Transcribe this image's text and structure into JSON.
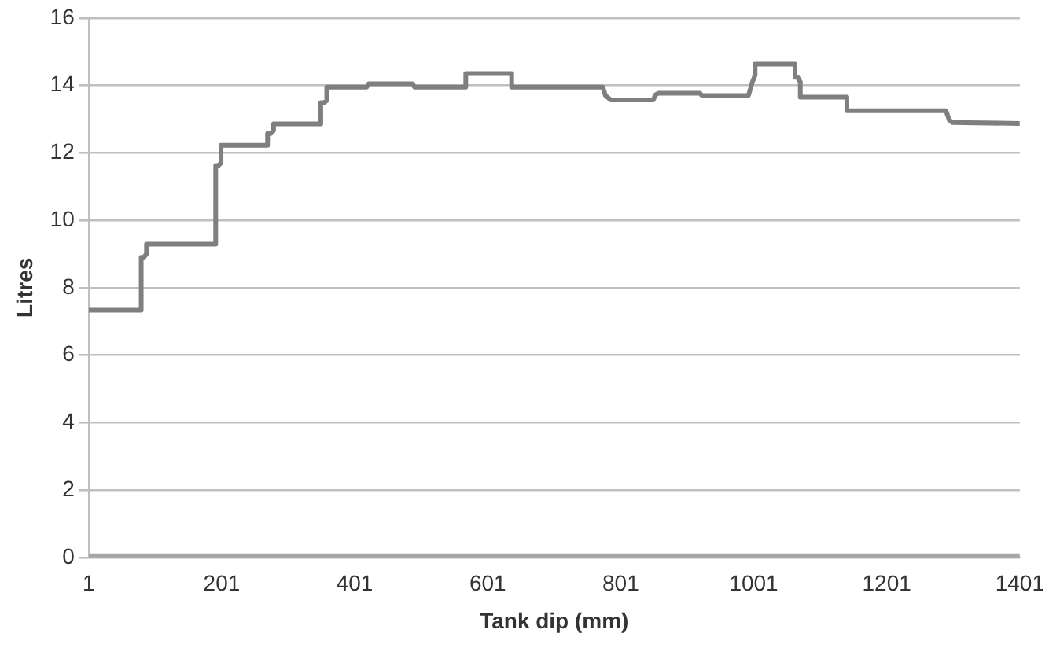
{
  "chart_data": {
    "type": "line",
    "xlabel": "Tank dip (mm)",
    "ylabel": "Litres",
    "xlim": [
      1,
      1401
    ],
    "xticks": [
      1,
      201,
      401,
      601,
      801,
      1001,
      1201,
      1401
    ],
    "ylim": [
      0,
      16
    ],
    "yticks": [
      0,
      2,
      4,
      6,
      8,
      10,
      12,
      14,
      16
    ],
    "grid": "y",
    "legend": false,
    "marker": "none",
    "line_style": "solid",
    "series": [
      {
        "color": "#7f7f7f",
        "x": [
          1,
          80,
          80,
          84,
          88,
          88,
          192,
          192,
          196,
          200,
          200,
          270,
          270,
          275,
          279,
          279,
          350,
          350,
          355,
          359,
          359,
          419,
          422,
          488,
          491,
          568,
          568,
          637,
          637,
          726,
          774,
          778,
          786,
          850,
          853,
          858,
          920,
          923,
          993,
          999,
          999,
          1003,
          1003,
          1063,
          1063,
          1067,
          1071,
          1071,
          1141,
          1141,
          1290,
          1295,
          1300,
          1401
        ],
        "values": [
          7.33,
          7.33,
          8.9,
          8.9,
          9.0,
          9.29,
          9.29,
          11.62,
          11.62,
          11.7,
          12.22,
          12.22,
          12.57,
          12.57,
          12.66,
          12.86,
          12.86,
          13.49,
          13.49,
          13.55,
          13.95,
          13.95,
          14.05,
          14.05,
          13.95,
          13.95,
          14.35,
          14.35,
          13.95,
          13.95,
          13.95,
          13.7,
          13.57,
          13.57,
          13.72,
          13.77,
          13.77,
          13.7,
          13.7,
          14.1,
          14.1,
          14.3,
          14.63,
          14.63,
          14.24,
          14.24,
          14.1,
          13.65,
          13.65,
          13.25,
          13.25,
          12.97,
          12.9,
          12.87
        ]
      },
      {
        "color": "#a6a6a6",
        "x": [
          1,
          1401
        ],
        "values": [
          0,
          0
        ]
      }
    ]
  }
}
